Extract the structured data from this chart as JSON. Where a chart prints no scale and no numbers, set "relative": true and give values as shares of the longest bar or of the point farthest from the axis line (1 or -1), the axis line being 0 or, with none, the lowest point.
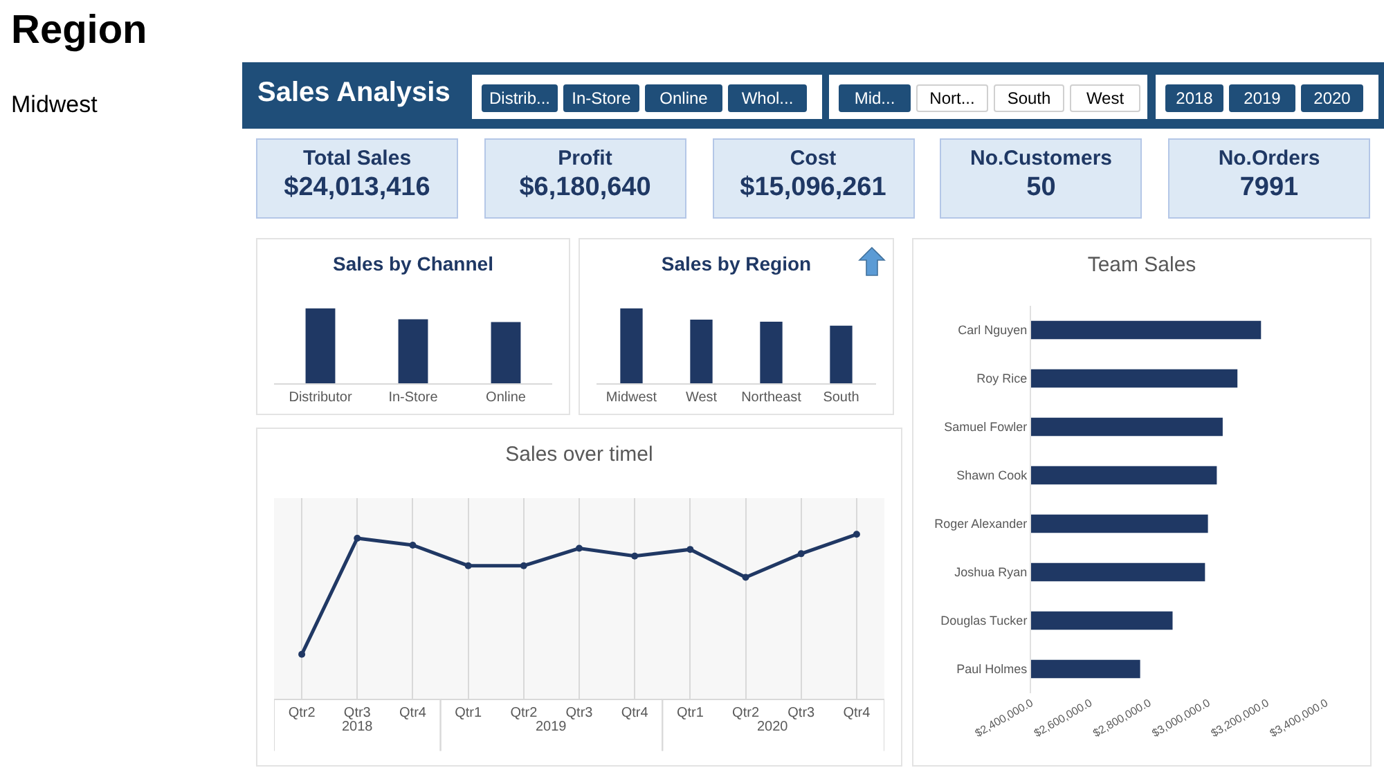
{
  "chart_data": [
    {
      "type": "other",
      "title": "Region",
      "annotations": [
        "Midwest"
      ]
    },
    {
      "type": "other",
      "title": "Sales Analysis"
    },
    {
      "type": "other",
      "annotations": [
        "Distrib...",
        "In-Store",
        "Online",
        "Whol..."
      ]
    },
    {
      "type": "other",
      "annotations": [
        "Mid...",
        "Nort...",
        "South",
        "West"
      ]
    },
    {
      "type": "other",
      "annotations": [
        "2018",
        "2019",
        "2020"
      ]
    },
    {
      "type": "other",
      "annotations": [
        "Total Sales",
        "$24,013,416",
        "Profit",
        "$6,180,640",
        "Cost",
        "$15,096,261",
        "No.Customers",
        "50",
        "No.Orders",
        "7991"
      ]
    },
    {
      "type": "bar",
      "title": "Sales by Channel",
      "relative": true,
      "categories": [
        "Distributor",
        "In-Store",
        "Online"
      ],
      "values": [
        1,
        0.855,
        0.818
      ],
      "color": "#1f3864",
      "grid": false,
      "legend": false
    },
    {
      "type": "bar",
      "title": "Sales by Region",
      "relative": true,
      "categories": [
        "Midwest",
        "West",
        "Northeast",
        "South"
      ],
      "values": [
        1,
        0.85,
        0.823,
        0.769
      ],
      "color": "#1f3864",
      "grid": false,
      "legend": false
    },
    {
      "type": "bar",
      "title": "Team Sales",
      "orientation": "horizontal",
      "categories": [
        "Carl Nguyen",
        "Roy Rice",
        "Samuel Fowler",
        "Shawn Cook",
        "Roger Alexander",
        "Joshua Ryan",
        "Douglas Tucker",
        "Paul Holmes"
      ],
      "values": [
        3180000,
        3100000,
        3050000,
        3030000,
        3000000,
        2990000,
        2880000,
        2770000
      ],
      "color": "#1f3864",
      "xlim": [
        2400000,
        3400000
      ],
      "xticks": [
        {
          "value": 2400000,
          "label": "$2,400,000.0"
        },
        {
          "value": 2600000,
          "label": "$2,600,000.0"
        },
        {
          "value": 2800000,
          "label": "$2,800,000.0"
        },
        {
          "value": 3000000,
          "label": "$3,000,000.0"
        },
        {
          "value": 3200000,
          "label": "$3,200,000.0"
        },
        {
          "value": 3400000,
          "label": "$3,400,000.0"
        }
      ],
      "grid": false,
      "legend": false
    },
    {
      "type": "line",
      "title": "Sales over timel",
      "relative": true,
      "categories": [
        "Qtr2",
        "Qtr3",
        "Qtr4",
        "Qtr1",
        "Qtr2",
        "Qtr3",
        "Qtr4",
        "Qtr1",
        "Qtr2",
        "Qtr3",
        "Qtr4"
      ],
      "annotations": [
        "2018",
        "2019",
        "2020"
      ],
      "values": [
        0.27,
        0.976,
        0.934,
        0.809,
        0.809,
        0.915,
        0.868,
        0.908,
        0.738,
        0.882,
        1
      ],
      "color": "#203864",
      "marker": "circle",
      "line_style": "solid",
      "grid": "x",
      "legend": false
    }
  ]
}
